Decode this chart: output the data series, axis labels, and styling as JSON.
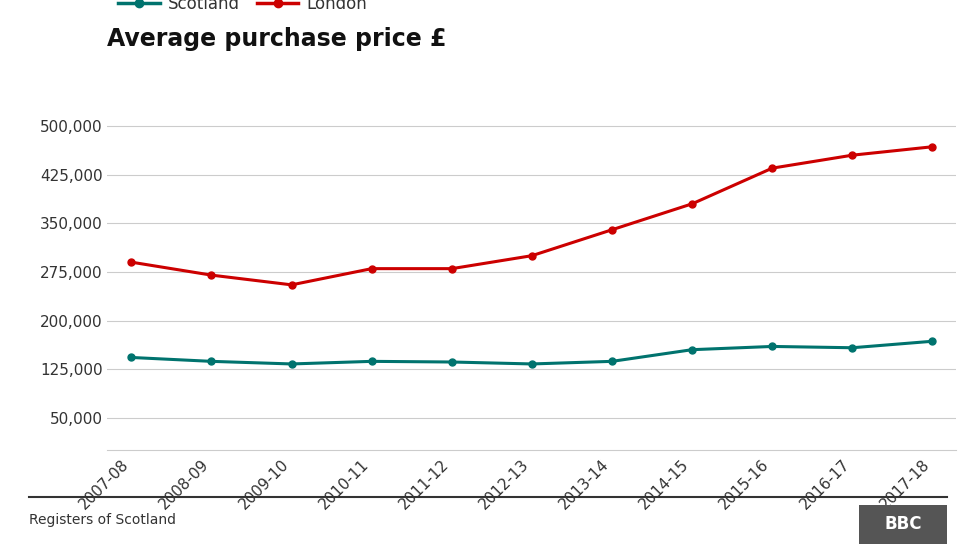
{
  "title": "Average purchase price £",
  "years": [
    "2007-08",
    "2008-09",
    "2009-10",
    "2010-11",
    "2011-12",
    "2012-13",
    "2013-14",
    "2014-15",
    "2015-16",
    "2016-17",
    "2017-18"
  ],
  "scotland": [
    143000,
    137000,
    133000,
    137000,
    136000,
    133000,
    137000,
    155000,
    160000,
    158000,
    168000
  ],
  "london": [
    290000,
    270000,
    255000,
    280000,
    280000,
    300000,
    340000,
    380000,
    435000,
    455000,
    468000
  ],
  "scotland_color": "#00736e",
  "london_color": "#cc0000",
  "background_color": "#ffffff",
  "footer_text": "Registers of Scotland",
  "bbc_text": "BBC",
  "ylim_min": 0,
  "ylim_max": 525000,
  "yticks": [
    50000,
    125000,
    200000,
    275000,
    350000,
    425000,
    500000
  ],
  "ytick_labels": [
    "50,000",
    "125,000",
    "200,000",
    "275,000",
    "350,000",
    "425,000",
    "500,000"
  ]
}
